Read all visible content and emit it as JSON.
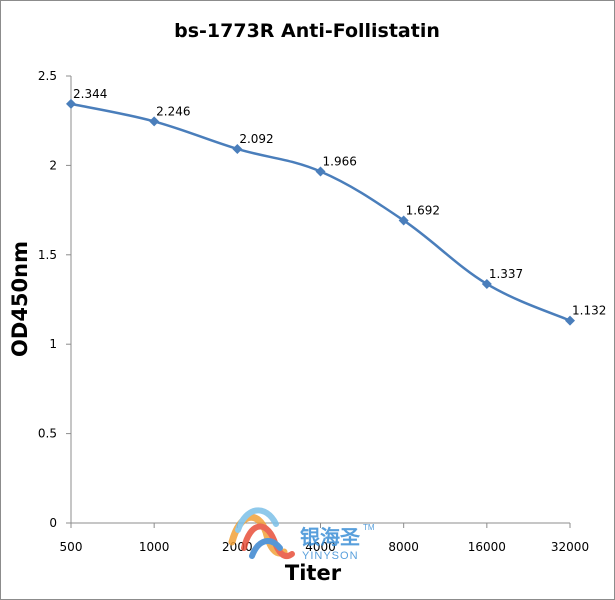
{
  "chart_data": {
    "type": "line",
    "title": "bs-1773R Anti-Follistatin",
    "xlabel": "Titer",
    "ylabel": "OD450nm",
    "categories": [
      "500",
      "1000",
      "2000",
      "4000",
      "8000",
      "16000",
      "32000"
    ],
    "y_ticks": [
      "0",
      "0.5",
      "1",
      "1.5",
      "2",
      "2.5"
    ],
    "series": [
      {
        "values": [
          2.344,
          2.246,
          2.092,
          1.966,
          1.692,
          1.337,
          1.132
        ],
        "labels": [
          "2.344",
          "2.246",
          "2.092",
          "1.966",
          "1.692",
          "1.337",
          "1.132"
        ],
        "color": "#4a7ebb",
        "marker": "diamond"
      }
    ],
    "ylim": [
      0,
      2.5
    ],
    "grid": false,
    "legend": "none"
  },
  "watermark": {
    "chinese": "银海圣",
    "english": "YINYSON",
    "tm": "TM"
  }
}
